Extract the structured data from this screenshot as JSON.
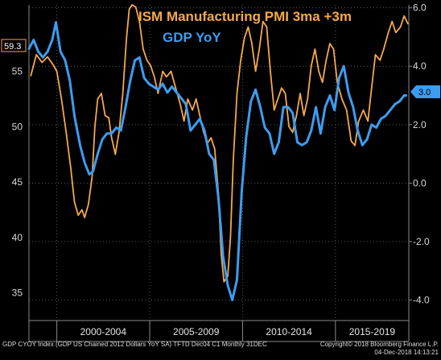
{
  "chart_data": {
    "type": "line",
    "title": "ISM Manufacturing PMI 3ma +3m",
    "subtitle": "GDP YoY",
    "x_range": [
      1998.5,
      2018.95
    ],
    "x_period_labels": [
      "2000-2004",
      "2005-2009",
      "2010-2014",
      "2015-2019"
    ],
    "left_axis": {
      "ylim": [
        32.5,
        61
      ],
      "ticks": [
        "35",
        "40",
        "45",
        "50",
        "55"
      ]
    },
    "right_axis": {
      "ylim": [
        -4.7,
        6.1
      ],
      "ticks": [
        "-4.0",
        "-2.0",
        "0.0",
        "2.0",
        "4.0",
        "6.0"
      ]
    },
    "grid": true,
    "series": [
      {
        "name": "ISM Manufacturing PMI 3ma +3m",
        "axis": "left",
        "color": "#f6a94a",
        "last_value_label": "59.3",
        "points": [
          [
            1998.6,
            54.6
          ],
          [
            1998.9,
            56.5
          ],
          [
            1999.2,
            55.8
          ],
          [
            1999.5,
            56.3
          ],
          [
            1999.8,
            55.6
          ],
          [
            2000.0,
            55.0
          ],
          [
            2000.25,
            52.5
          ],
          [
            2000.5,
            49.5
          ],
          [
            2000.75,
            46.3
          ],
          [
            2000.95,
            43.2
          ],
          [
            2001.15,
            42.0
          ],
          [
            2001.35,
            42.5
          ],
          [
            2001.5,
            41.8
          ],
          [
            2001.7,
            43.0
          ],
          [
            2001.9,
            45.5
          ],
          [
            2002.05,
            50.0
          ],
          [
            2002.2,
            52.5
          ],
          [
            2002.4,
            53.0
          ],
          [
            2002.6,
            51.0
          ],
          [
            2002.8,
            50.8
          ],
          [
            2002.95,
            49.0
          ],
          [
            2003.15,
            47.5
          ],
          [
            2003.35,
            49.5
          ],
          [
            2003.55,
            53.0
          ],
          [
            2003.75,
            58.0
          ],
          [
            2003.9,
            60.6
          ],
          [
            2004.05,
            61.0
          ],
          [
            2004.25,
            60.8
          ],
          [
            2004.45,
            59.5
          ],
          [
            2004.65,
            57.0
          ],
          [
            2004.85,
            56.0
          ],
          [
            2005.05,
            55.5
          ],
          [
            2005.25,
            54.5
          ],
          [
            2005.45,
            53.0
          ],
          [
            2005.7,
            55.0
          ],
          [
            2005.9,
            54.5
          ],
          [
            2006.15,
            55.0
          ],
          [
            2006.4,
            53.5
          ],
          [
            2006.65,
            52.0
          ],
          [
            2006.85,
            50.5
          ],
          [
            2007.05,
            52.5
          ],
          [
            2007.3,
            51.5
          ],
          [
            2007.5,
            52.5
          ],
          [
            2007.7,
            51.0
          ],
          [
            2007.9,
            49.5
          ],
          [
            2008.1,
            48.5
          ],
          [
            2008.3,
            49.0
          ],
          [
            2008.5,
            48.0
          ],
          [
            2008.7,
            44.0
          ],
          [
            2008.85,
            38.5
          ],
          [
            2009.0,
            36.0
          ],
          [
            2009.2,
            36.5
          ],
          [
            2009.35,
            40.0
          ],
          [
            2009.5,
            47.0
          ],
          [
            2009.7,
            53.0
          ],
          [
            2009.9,
            56.0
          ],
          [
            2010.1,
            58.0
          ],
          [
            2010.3,
            59.0
          ],
          [
            2010.5,
            57.5
          ],
          [
            2010.7,
            55.0
          ],
          [
            2010.9,
            57.0
          ],
          [
            2011.1,
            59.5
          ],
          [
            2011.3,
            59.0
          ],
          [
            2011.5,
            55.0
          ],
          [
            2011.7,
            51.5
          ],
          [
            2011.9,
            52.5
          ],
          [
            2012.1,
            53.5
          ],
          [
            2012.3,
            53.0
          ],
          [
            2012.5,
            50.0
          ],
          [
            2012.7,
            49.5
          ],
          [
            2012.9,
            51.0
          ],
          [
            2013.1,
            53.0
          ],
          [
            2013.3,
            51.0
          ],
          [
            2013.5,
            52.5
          ],
          [
            2013.7,
            55.5
          ],
          [
            2013.9,
            57.0
          ],
          [
            2014.1,
            55.0
          ],
          [
            2014.3,
            54.0
          ],
          [
            2014.5,
            56.0
          ],
          [
            2014.7,
            57.5
          ],
          [
            2014.9,
            57.0
          ],
          [
            2015.1,
            54.0
          ],
          [
            2015.35,
            52.5
          ],
          [
            2015.6,
            51.5
          ],
          [
            2015.85,
            48.7
          ],
          [
            2016.05,
            48.3
          ],
          [
            2016.25,
            50.5
          ],
          [
            2016.5,
            51.5
          ],
          [
            2016.75,
            50.5
          ],
          [
            2016.95,
            53.5
          ],
          [
            2017.15,
            56.5
          ],
          [
            2017.4,
            56.0
          ],
          [
            2017.6,
            57.0
          ],
          [
            2017.85,
            58.5
          ],
          [
            2018.05,
            59.5
          ],
          [
            2018.25,
            58.5
          ],
          [
            2018.5,
            59.0
          ],
          [
            2018.7,
            60.0
          ],
          [
            2018.9,
            59.3
          ]
        ]
      },
      {
        "name": "GDP YoY",
        "axis": "right",
        "color": "#3d9cf0",
        "last_value_label": "3.0",
        "points": [
          [
            1998.5,
            4.6
          ],
          [
            1998.75,
            4.9
          ],
          [
            1999.0,
            4.5
          ],
          [
            1999.25,
            4.3
          ],
          [
            1999.5,
            4.5
          ],
          [
            1999.75,
            4.9
          ],
          [
            1999.95,
            5.5
          ],
          [
            2000.2,
            4.5
          ],
          [
            2000.45,
            4.2
          ],
          [
            2000.7,
            3.5
          ],
          [
            2000.95,
            2.3
          ],
          [
            2001.25,
            1.3
          ],
          [
            2001.5,
            0.7
          ],
          [
            2001.75,
            0.3
          ],
          [
            2001.95,
            0.4
          ],
          [
            2002.2,
            1.0
          ],
          [
            2002.45,
            1.5
          ],
          [
            2002.7,
            1.7
          ],
          [
            2002.95,
            1.7
          ],
          [
            2003.2,
            1.9
          ],
          [
            2003.45,
            1.8
          ],
          [
            2003.7,
            2.6
          ],
          [
            2003.95,
            3.5
          ],
          [
            2004.2,
            4.2
          ],
          [
            2004.45,
            4.3
          ],
          [
            2004.7,
            3.6
          ],
          [
            2004.95,
            3.4
          ],
          [
            2005.2,
            3.3
          ],
          [
            2005.45,
            3.2
          ],
          [
            2005.7,
            3.4
          ],
          [
            2005.95,
            3.1
          ],
          [
            2006.2,
            3.3
          ],
          [
            2006.45,
            3.1
          ],
          [
            2006.7,
            2.9
          ],
          [
            2006.95,
            2.7
          ],
          [
            2007.2,
            1.8
          ],
          [
            2007.45,
            2.0
          ],
          [
            2007.7,
            2.2
          ],
          [
            2007.95,
            1.8
          ],
          [
            2008.2,
            1.0
          ],
          [
            2008.45,
            0.8
          ],
          [
            2008.7,
            -0.5
          ],
          [
            2008.95,
            -2.5
          ],
          [
            2009.2,
            -3.5
          ],
          [
            2009.45,
            -4.0
          ],
          [
            2009.7,
            -3.3
          ],
          [
            2009.95,
            -0.3
          ],
          [
            2010.2,
            1.6
          ],
          [
            2010.45,
            2.8
          ],
          [
            2010.7,
            3.2
          ],
          [
            2010.95,
            2.6
          ],
          [
            2011.2,
            1.9
          ],
          [
            2011.45,
            1.7
          ],
          [
            2011.7,
            1.0
          ],
          [
            2011.95,
            1.4
          ],
          [
            2012.2,
            2.6
          ],
          [
            2012.45,
            2.6
          ],
          [
            2012.7,
            2.4
          ],
          [
            2012.95,
            1.4
          ],
          [
            2013.2,
            1.3
          ],
          [
            2013.45,
            1.4
          ],
          [
            2013.7,
            1.8
          ],
          [
            2013.95,
            2.6
          ],
          [
            2014.2,
            1.7
          ],
          [
            2014.45,
            2.6
          ],
          [
            2014.7,
            3.0
          ],
          [
            2014.95,
            2.5
          ],
          [
            2015.2,
            3.6
          ],
          [
            2015.45,
            4.0
          ],
          [
            2015.7,
            3.1
          ],
          [
            2015.95,
            2.6
          ],
          [
            2016.2,
            1.8
          ],
          [
            2016.45,
            1.3
          ],
          [
            2016.7,
            1.5
          ],
          [
            2016.95,
            2.0
          ],
          [
            2017.2,
            1.9
          ],
          [
            2017.45,
            2.2
          ],
          [
            2017.7,
            2.3
          ],
          [
            2017.95,
            2.5
          ],
          [
            2018.2,
            2.7
          ],
          [
            2018.45,
            2.8
          ],
          [
            2018.7,
            3.0
          ],
          [
            2018.8,
            3.0
          ]
        ]
      }
    ]
  },
  "footer": {
    "left_text": "GDP CYOY Index (GDP US Chained 2012 Dollars YoY SA) TFTD Dec04 C1  Monthly 31DEC",
    "copyright": "Copyright© 2018 Bloomberg Finance L.P.",
    "timestamp": "04-Dec-2018 14:13:21"
  }
}
